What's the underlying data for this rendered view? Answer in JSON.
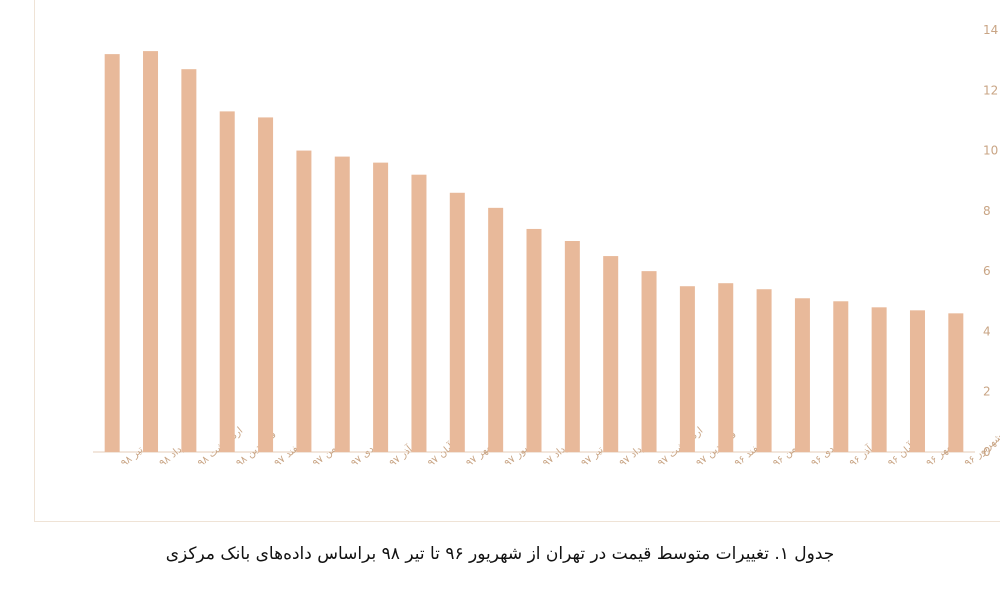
{
  "caption": "جدول ۱. تغییرات متوسط قیمت در تهران از شهریور ۹۶ تا تیر ۹۸ براساس داده‌های بانک مرکزی",
  "chart_data": {
    "type": "bar",
    "title": "",
    "xlabel": "",
    "ylabel": "",
    "ylim": [
      0,
      14
    ],
    "yticks": [
      "0",
      "2",
      "4",
      "6",
      "8",
      "10",
      "12",
      "14"
    ],
    "y_axis_side": "right",
    "grid": false,
    "bar_color": "#e8b99a",
    "tick_color": "#c9a585",
    "categories": [
      "تیر ۹۸",
      "خرداد ۹۸",
      "اردیبهشت ۹۸",
      "فروردین ۹۸",
      "اسفند ۹۷",
      "بهمن ۹۷",
      "دی ۹۷",
      "آذر ۹۷",
      "آبان ۹۷",
      "مهر ۹۷",
      "شهریور ۹۷",
      "مرداد ۹۷",
      "تیر ۹۷",
      "خرداد ۹۷",
      "اردیبهشت ۹۷",
      "فروردین ۹۷",
      "اسفند ۹۶",
      "بهمن ۹۶",
      "دی ۹۶",
      "آذر ۹۶",
      "آبان ۹۶",
      "مهر ۹۶",
      "شهریور ۹۶"
    ],
    "values": [
      13.2,
      13.3,
      12.7,
      11.3,
      11.1,
      10.0,
      9.8,
      9.6,
      9.2,
      8.6,
      8.1,
      7.4,
      7.0,
      6.5,
      6.0,
      5.5,
      5.6,
      5.4,
      5.1,
      5.0,
      4.8,
      4.7,
      4.6
    ]
  }
}
